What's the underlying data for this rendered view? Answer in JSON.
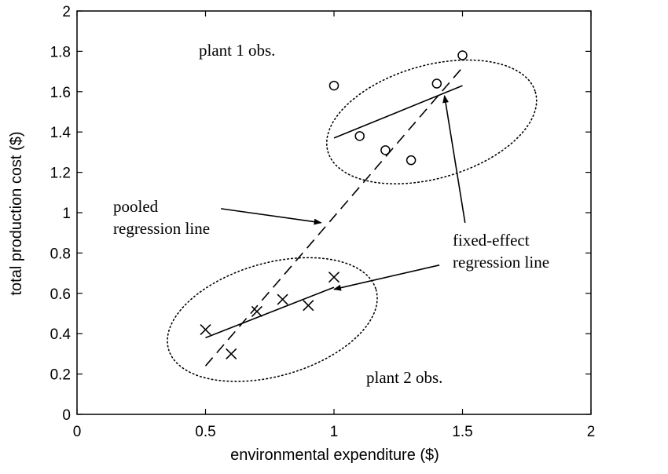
{
  "chart_data": {
    "type": "scatter",
    "title": "",
    "xlabel": "environmental expenditure ($)",
    "ylabel": "total production cost ($)",
    "xlim": [
      0,
      2
    ],
    "ylim": [
      0,
      2
    ],
    "xticks": [
      0,
      0.5,
      1,
      1.5,
      2
    ],
    "xtick_labels": [
      "0",
      "0.5",
      "1",
      "1.5",
      "2"
    ],
    "yticks": [
      0,
      0.2,
      0.4,
      0.6,
      0.8,
      1,
      1.2,
      1.4,
      1.6,
      1.8,
      2
    ],
    "ytick_labels": [
      "0",
      "0.2",
      "0.4",
      "0.6",
      "0.8",
      "1",
      "1.2",
      "1.4",
      "1.6",
      "1.8",
      "2"
    ],
    "grid": false,
    "series": [
      {
        "marker": "circle",
        "x": [
          1.0,
          1.1,
          1.2,
          1.3,
          1.4,
          1.5
        ],
        "y": [
          1.63,
          1.38,
          1.31,
          1.26,
          1.64,
          1.78
        ]
      },
      {
        "marker": "x",
        "x": [
          0.5,
          0.6,
          0.7,
          0.8,
          0.9,
          1.0
        ],
        "y": [
          0.42,
          0.3,
          0.51,
          0.57,
          0.54,
          0.68
        ]
      }
    ],
    "lines": [
      {
        "style": "dashed",
        "x": [
          0.5,
          1.5
        ],
        "y": [
          0.24,
          1.72
        ]
      },
      {
        "style": "solid",
        "x": [
          1.0,
          1.5
        ],
        "y": [
          1.37,
          1.63
        ]
      },
      {
        "style": "solid",
        "x": [
          0.5,
          1.0
        ],
        "y": [
          0.38,
          0.63
        ]
      }
    ],
    "ellipses": [
      {
        "style": "dotted",
        "cx": 1.38,
        "cy": 1.45,
        "rx": 0.42,
        "ry": 0.28
      },
      {
        "style": "dotted",
        "cx": 0.76,
        "cy": 0.47,
        "rx": 0.42,
        "ry": 0.28
      }
    ],
    "annotations": {
      "plant1": {
        "text": "plant 1 obs.",
        "x": 0.67,
        "y": 1.81
      },
      "plant2": {
        "text": "plant 2 obs.",
        "x": 1.36,
        "y": 0.18
      },
      "pooled": {
        "lines": [
          "pooled",
          "regression line"
        ],
        "x": 0.14,
        "y": 1.02,
        "arrow_from": [
          0.56,
          1.02
        ],
        "arrow_to": [
          0.95,
          0.95
        ]
      },
      "fixed": {
        "lines": [
          "fixed-effect",
          "regression line"
        ],
        "x": 1.46,
        "y": 0.86,
        "arrow_from": [
          1.41,
          0.74
        ],
        "arrow_to": [
          1.0,
          0.62
        ],
        "arrow2_from": [
          1.51,
          0.95
        ],
        "arrow2_to": [
          1.43,
          1.58
        ]
      }
    }
  }
}
